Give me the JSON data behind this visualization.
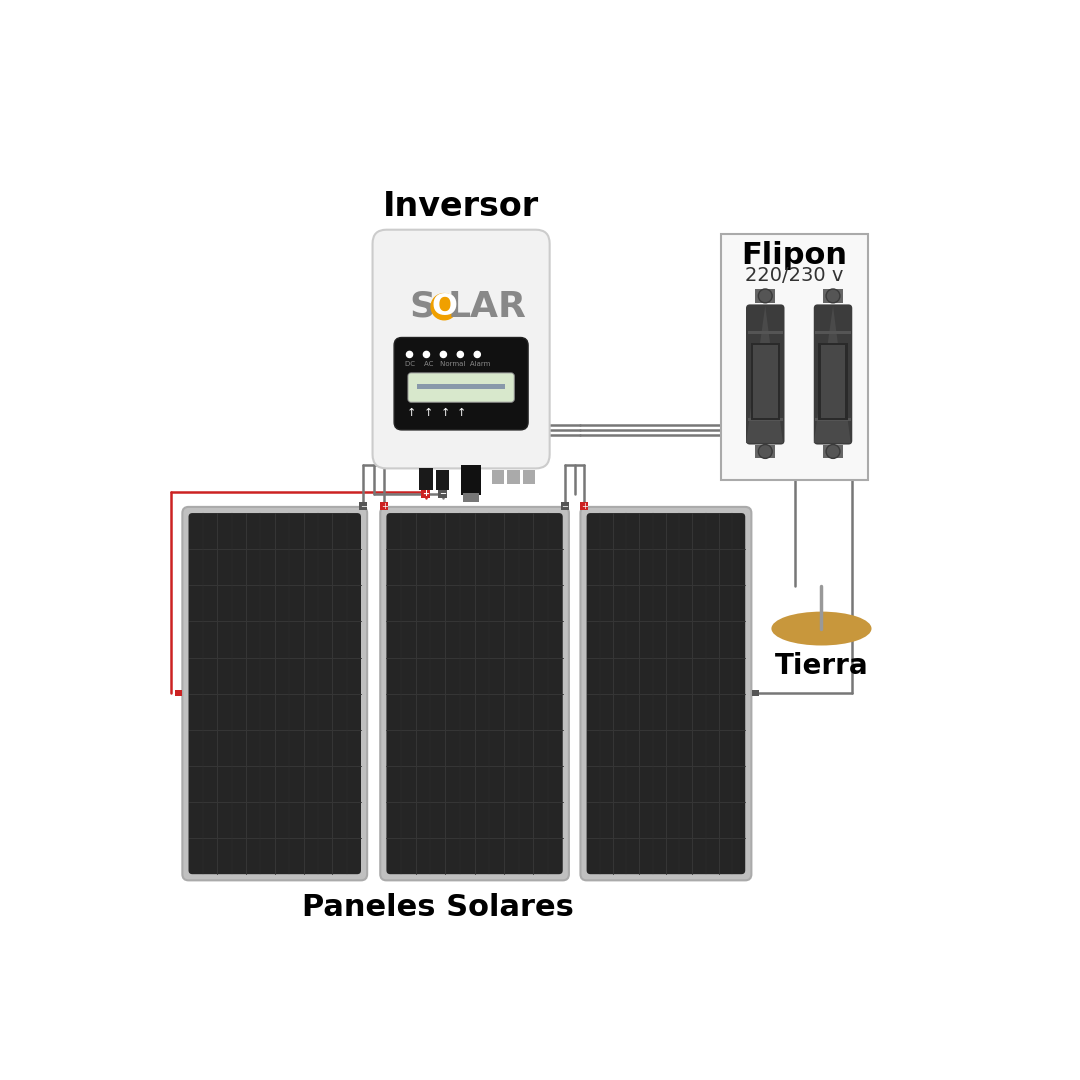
{
  "bg_color": "#ffffff",
  "inversor_label": "Inversor",
  "flipon_label": "Flipon",
  "flipon_sublabel": "220/230 v",
  "paneles_label": "Paneles Solares",
  "tierra_label": "Tierra",
  "inv_body_color": "#f2f2f2",
  "inv_border_color": "#cccccc",
  "inv_display_color": "#111111",
  "solar_o_color": "#f0a000",
  "solar_letter_color": "#888888",
  "lcd_color": "#d8e8cc",
  "flip_body_color": "#f8f8f8",
  "flipon_dark": "#3c3c3c",
  "flipon_mid": "#555555",
  "flipon_light": "#6a6a6a",
  "panel_frame": "#c0c0c0",
  "panel_body": "#252525",
  "panel_grid": "#363636",
  "wire_gray": "#777777",
  "wire_red": "#cc2222",
  "tierra_color": "#c8973c",
  "tierra_stick_color": "#999999",
  "connector_red": "#cc2222",
  "connector_gray": "#555555"
}
